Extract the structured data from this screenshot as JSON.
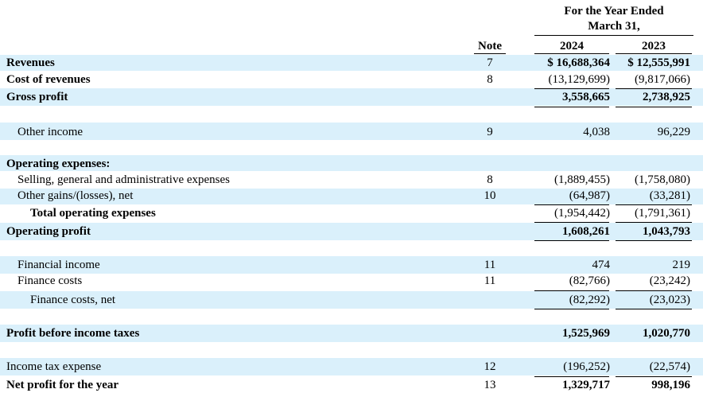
{
  "header": {
    "period_line1": "For the Year Ended",
    "period_line2": "March 31,",
    "note_col": "Note",
    "year1": "2024",
    "year2": "2023"
  },
  "rows": [
    {
      "label": "Revenues",
      "note": "7",
      "v2024": "$ 16,688,364",
      "v2023": "$ 12,555,991"
    },
    {
      "label": "Cost of revenues",
      "note": "8",
      "v2024": "(13,129,699)",
      "v2023": "(9,817,066)"
    },
    {
      "label": "Gross profit",
      "note": "",
      "v2024": "3,558,665",
      "v2023": "2,738,925"
    },
    {
      "label": "Other income",
      "note": "9",
      "v2024": "4,038",
      "v2023": "96,229"
    },
    {
      "label": "Operating expenses:",
      "note": "",
      "v2024": "",
      "v2023": ""
    },
    {
      "label": "Selling, general and administrative expenses",
      "note": "8",
      "v2024": "(1,889,455)",
      "v2023": "(1,758,080)"
    },
    {
      "label": "Other gains/(losses), net",
      "note": "10",
      "v2024": "(64,987)",
      "v2023": "(33,281)"
    },
    {
      "label": "Total operating expenses",
      "note": "",
      "v2024": "(1,954,442)",
      "v2023": "(1,791,361)"
    },
    {
      "label": "Operating profit",
      "note": "",
      "v2024": "1,608,261",
      "v2023": "1,043,793"
    },
    {
      "label": "Financial income",
      "note": "11",
      "v2024": "474",
      "v2023": "219"
    },
    {
      "label": "Finance costs",
      "note": "11",
      "v2024": "(82,766)",
      "v2023": "(23,242)"
    },
    {
      "label": "Finance costs, net",
      "note": "",
      "v2024": "(82,292)",
      "v2023": "(23,023)"
    },
    {
      "label": "Profit before income taxes",
      "note": "",
      "v2024": "1,525,969",
      "v2023": "1,020,770"
    },
    {
      "label": "Income tax expense",
      "note": "12",
      "v2024": "(196,252)",
      "v2023": "(22,574)"
    },
    {
      "label": "Net profit for the year",
      "note": "13",
      "v2024": "1,329,717",
      "v2023": "998,196"
    }
  ]
}
